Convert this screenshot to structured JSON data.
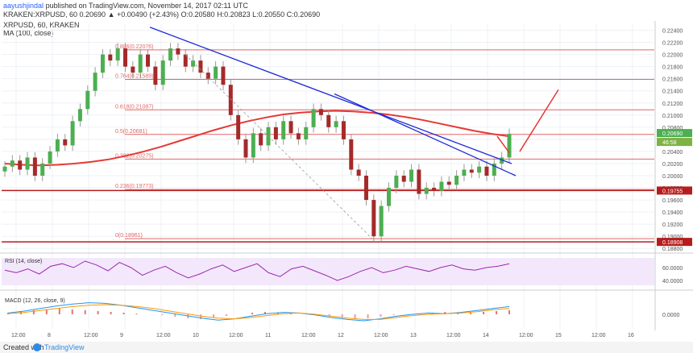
{
  "header": {
    "author": "aayushjindal",
    "published": "published on TradingView.com, November 14, 2017 02:11 UTC",
    "ohlc": "KRAKEN:XRPUSD, 60  0.20690 ▲ +0.00490 (+2.43%)  O:0.20580  H:0.20823  L:0.20550  C:0.20690",
    "symbol_line": "XRPUSD, 60, KRAKEN",
    "ma_line": "MA (100, close)"
  },
  "footer": {
    "created_with": "Created with",
    "brand": "TradingView"
  },
  "colors": {
    "up": "#4caf50",
    "down": "#a52a2a",
    "ma": "#e53935",
    "trendline": "#1e2ad8",
    "fib": "#e06666",
    "support": "#b71c1c",
    "rsi": "#9c27b0",
    "macd": "#2196f3",
    "signal": "#ff9800"
  },
  "chart_data": {
    "type": "candlestick",
    "price_axis": {
      "ticks": [
        "0.22400",
        "0.22200",
        "0.22000",
        "0.21800",
        "0.21600",
        "0.21400",
        "0.21200",
        "0.21000",
        "0.20800",
        "0.20600",
        "0.20400",
        "0.20200",
        "0.20000",
        "0.19800",
        "0.19600",
        "0.19400",
        "0.19200",
        "0.19000",
        "0.18800"
      ],
      "range": [
        0.1875,
        0.225
      ],
      "last_price": "0.20690",
      "extra_label": "46:58",
      "support_labels": [
        "0.19755",
        "0.18908"
      ]
    },
    "time_axis": [
      "12:00",
      "8",
      "12:00",
      "9",
      "12:00",
      "10",
      "12:00",
      "11",
      "12:00",
      "12",
      "12:00",
      "13",
      "12:00",
      "14",
      "12:00",
      "15",
      "12:00",
      "16"
    ],
    "fib_levels": [
      {
        "label": "0.886(0.22076)",
        "value": 0.22076
      },
      {
        "label": "0.764(0.21589)",
        "value": 0.21589
      },
      {
        "label": "0.618(0.21087)",
        "value": 0.21087
      },
      {
        "label": "0.5(0.20681)",
        "value": 0.20681
      },
      {
        "label": "0.382(0.20275)",
        "value": 0.20275
      },
      {
        "label": "0.236(0.19773)",
        "value": 0.19773
      },
      {
        "label": "0(0.18961)",
        "value": 0.18961
      }
    ],
    "support_levels": [
      0.19755,
      0.18908
    ],
    "closes": [
      0.2015,
      0.2025,
      0.201,
      0.203,
      0.2,
      0.202,
      0.204,
      0.206,
      0.205,
      0.209,
      0.211,
      0.214,
      0.217,
      0.22,
      0.219,
      0.221,
      0.218,
      0.217,
      0.22,
      0.218,
      0.215,
      0.219,
      0.221,
      0.22,
      0.218,
      0.219,
      0.217,
      0.216,
      0.218,
      0.215,
      0.21,
      0.206,
      0.203,
      0.207,
      0.205,
      0.208,
      0.206,
      0.209,
      0.207,
      0.206,
      0.208,
      0.211,
      0.21,
      0.208,
      0.209,
      0.206,
      0.201,
      0.2,
      0.196,
      0.19,
      0.195,
      0.198,
      0.2,
      0.199,
      0.201,
      0.197,
      0.198,
      0.1975,
      0.199,
      0.1985,
      0.2,
      0.201,
      0.2005,
      0.2015,
      0.2,
      0.202,
      0.203,
      0.2069
    ],
    "ma100": [
      0.202,
      0.2018,
      0.2017,
      0.2018,
      0.202,
      0.2023,
      0.2027,
      0.2033,
      0.204,
      0.2048,
      0.2057,
      0.2066,
      0.2075,
      0.2083,
      0.209,
      0.2096,
      0.2101,
      0.2104,
      0.2106,
      0.2107,
      0.2106,
      0.2104,
      0.2101,
      0.2097,
      0.2092,
      0.2086,
      0.208,
      0.2074,
      0.2069,
      0.2065
    ],
    "rsi": {
      "label": "RSI (14, close)",
      "ticks": [
        "60.0000",
        "40.0000"
      ],
      "values": [
        56,
        52,
        58,
        50,
        62,
        66,
        60,
        70,
        64,
        55,
        68,
        60,
        48,
        56,
        62,
        52,
        44,
        50,
        58,
        64,
        54,
        60,
        66,
        52,
        46,
        58,
        62,
        55,
        48,
        40,
        46,
        54,
        60,
        52,
        56,
        62,
        58,
        54,
        60,
        64,
        58,
        56,
        60,
        62,
        66
      ]
    },
    "macd": {
      "label": "MACD (12, 26, close, 9)",
      "tick": "0.0000",
      "histogram": [
        0.2,
        0.4,
        0.5,
        0.6,
        0.7,
        0.6,
        0.5,
        0.4,
        0.3,
        0.2,
        0.1,
        0.0,
        -0.1,
        -0.3,
        -0.5,
        -0.6,
        -0.4,
        -0.2,
        0.0,
        0.2,
        0.3,
        0.2,
        0.1,
        0.0,
        -0.1,
        -0.2,
        -0.4,
        -0.6,
        -0.5,
        -0.3,
        -0.1,
        0.0,
        0.1,
        0.2,
        0.3,
        0.2,
        0.2,
        0.3,
        0.4,
        0.5
      ],
      "macd_line": [
        0.2,
        0.5,
        0.9,
        1.3,
        1.6,
        1.8,
        1.7,
        1.4,
        1.0,
        0.6,
        0.2,
        -0.2,
        -0.6,
        -0.9,
        -0.7,
        -0.3,
        0.1,
        0.3,
        0.2,
        -0.1,
        -0.5,
        -0.8,
        -1.0,
        -0.7,
        -0.3,
        0.0,
        0.2,
        0.1,
        0.3,
        0.6,
        0.9,
        1.2
      ],
      "signal_line": [
        0.1,
        0.3,
        0.6,
        0.9,
        1.2,
        1.4,
        1.5,
        1.4,
        1.2,
        0.9,
        0.5,
        0.1,
        -0.3,
        -0.6,
        -0.7,
        -0.5,
        -0.2,
        0.1,
        0.2,
        0.0,
        -0.3,
        -0.6,
        -0.8,
        -0.8,
        -0.5,
        -0.2,
        0.0,
        0.1,
        0.2,
        0.4,
        0.7,
        0.9
      ]
    }
  }
}
